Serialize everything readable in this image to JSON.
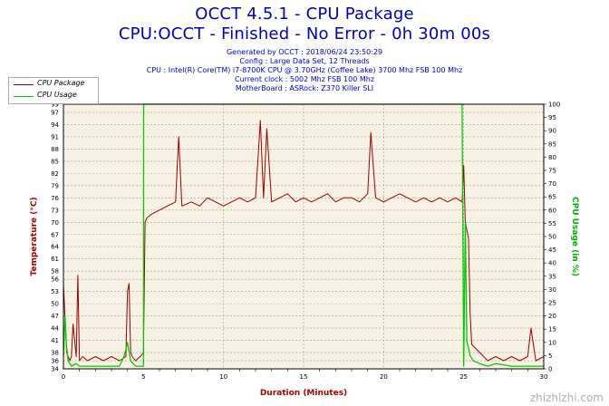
{
  "header": {
    "title_line1": "OCCT 4.5.1 - CPU Package",
    "title_line2": "CPU:OCCT - Finished - No Error - 0h 30m 00s",
    "generated": "Generated by OCCT : 2018/06/24 23:50:29",
    "config": "Config : Large Data Set, 12 Threads",
    "cpu": "CPU : Intel(R) Core(TM) i7-8700K CPU @ 3.70GHz (Coffee Lake) 3700 Mhz FSB 100 Mhz",
    "clock": "Current clock : 5002 Mhz FSB 100 Mhz",
    "motherboard": "MotherBoard : ASRock: Z370 Killer SLI"
  },
  "watermark": "zhizhizhi.com",
  "colors": {
    "temperature": "#9c0000",
    "usage": "#00cc00",
    "plot_bg": "#f7f2e4",
    "grid": "#9a9a9a",
    "title": "#0000b8",
    "left_axis_label": "#b00000",
    "right_axis_label": "#00b000"
  },
  "chart_data": {
    "type": "line",
    "xlabel": "Duration (Minutes)",
    "ylabel": "Temperature (°C)",
    "y2label": "CPU Usage (in %)",
    "xlim": [
      0,
      30
    ],
    "ylim": [
      34,
      99
    ],
    "y2lim": [
      0,
      100
    ],
    "x_ticks": [
      "0",
      "5",
      "10",
      "15",
      "20",
      "25",
      "30"
    ],
    "y_ticks": [
      "34",
      "36",
      "38",
      "41",
      "44",
      "47",
      "50",
      "53",
      "56",
      "58",
      "61",
      "64",
      "67",
      "70",
      "73",
      "76",
      "79",
      "82",
      "85",
      "88",
      "91",
      "94",
      "97",
      "99"
    ],
    "y2_ticks": [
      "0",
      "5",
      "10",
      "15",
      "20",
      "25",
      "30",
      "35",
      "40",
      "45",
      "50",
      "55",
      "60",
      "65",
      "70",
      "75",
      "80",
      "85",
      "90",
      "95",
      "100"
    ],
    "grid": true,
    "legend_position": "top-left",
    "series": [
      {
        "name": "CPU Package",
        "axis": "left",
        "x": [
          0,
          0.2,
          0.4,
          0.5,
          0.6,
          0.8,
          0.9,
          1.0,
          1.2,
          1.5,
          2.0,
          2.5,
          3.0,
          3.5,
          3.9,
          4.0,
          4.1,
          4.2,
          4.3,
          4.5,
          4.8,
          5.0,
          5.1,
          5.2,
          5.5,
          6.0,
          6.5,
          7.0,
          7.2,
          7.4,
          8.0,
          8.5,
          9.0,
          9.5,
          10.0,
          10.5,
          11.0,
          11.5,
          12.0,
          12.3,
          12.5,
          12.7,
          13.0,
          13.5,
          14.0,
          14.5,
          15.0,
          15.5,
          16.0,
          16.5,
          17.0,
          17.5,
          18.0,
          18.5,
          19.0,
          19.2,
          19.5,
          20.0,
          20.5,
          21.0,
          21.5,
          22.0,
          22.5,
          23.0,
          23.5,
          24.0,
          24.5,
          24.9,
          25.0,
          25.1,
          25.2,
          25.3,
          25.4,
          25.5,
          26.0,
          26.5,
          27.0,
          27.5,
          28.0,
          28.5,
          29.0,
          29.2,
          29.5,
          30.0
        ],
        "values": [
          55,
          38,
          36,
          37,
          45,
          37,
          57,
          36,
          37,
          36,
          37,
          36,
          37,
          36,
          37,
          53,
          55,
          38,
          37,
          36,
          37,
          38,
          70,
          71,
          72,
          73,
          74,
          75,
          91,
          74,
          75,
          74,
          76,
          75,
          74,
          75,
          76,
          75,
          76,
          95,
          76,
          93,
          75,
          76,
          77,
          75,
          76,
          75,
          76,
          77,
          75,
          76,
          76,
          75,
          77,
          92,
          76,
          75,
          76,
          77,
          76,
          75,
          76,
          75,
          76,
          75,
          76,
          75,
          84,
          70,
          68,
          66,
          48,
          40,
          38,
          36,
          37,
          36,
          37,
          36,
          37,
          44,
          36,
          37
        ]
      },
      {
        "name": "CPU Usage",
        "axis": "right",
        "x": [
          0,
          0.1,
          0.2,
          0.3,
          0.4,
          0.5,
          0.8,
          1.0,
          1.5,
          3.5,
          3.8,
          4.0,
          4.2,
          4.5,
          4.9,
          5.0,
          5.01,
          24.9,
          25.0,
          25.1,
          25.2,
          25.3,
          25.4,
          25.6,
          26.0,
          26.5,
          27.0,
          28.0,
          29.0,
          30.0
        ],
        "values": [
          5,
          20,
          8,
          3,
          2,
          1,
          2,
          1,
          1,
          1,
          5,
          10,
          3,
          1,
          1,
          1,
          100,
          100,
          1,
          55,
          10,
          8,
          5,
          3,
          2,
          1,
          2,
          1,
          1,
          1
        ]
      }
    ]
  }
}
